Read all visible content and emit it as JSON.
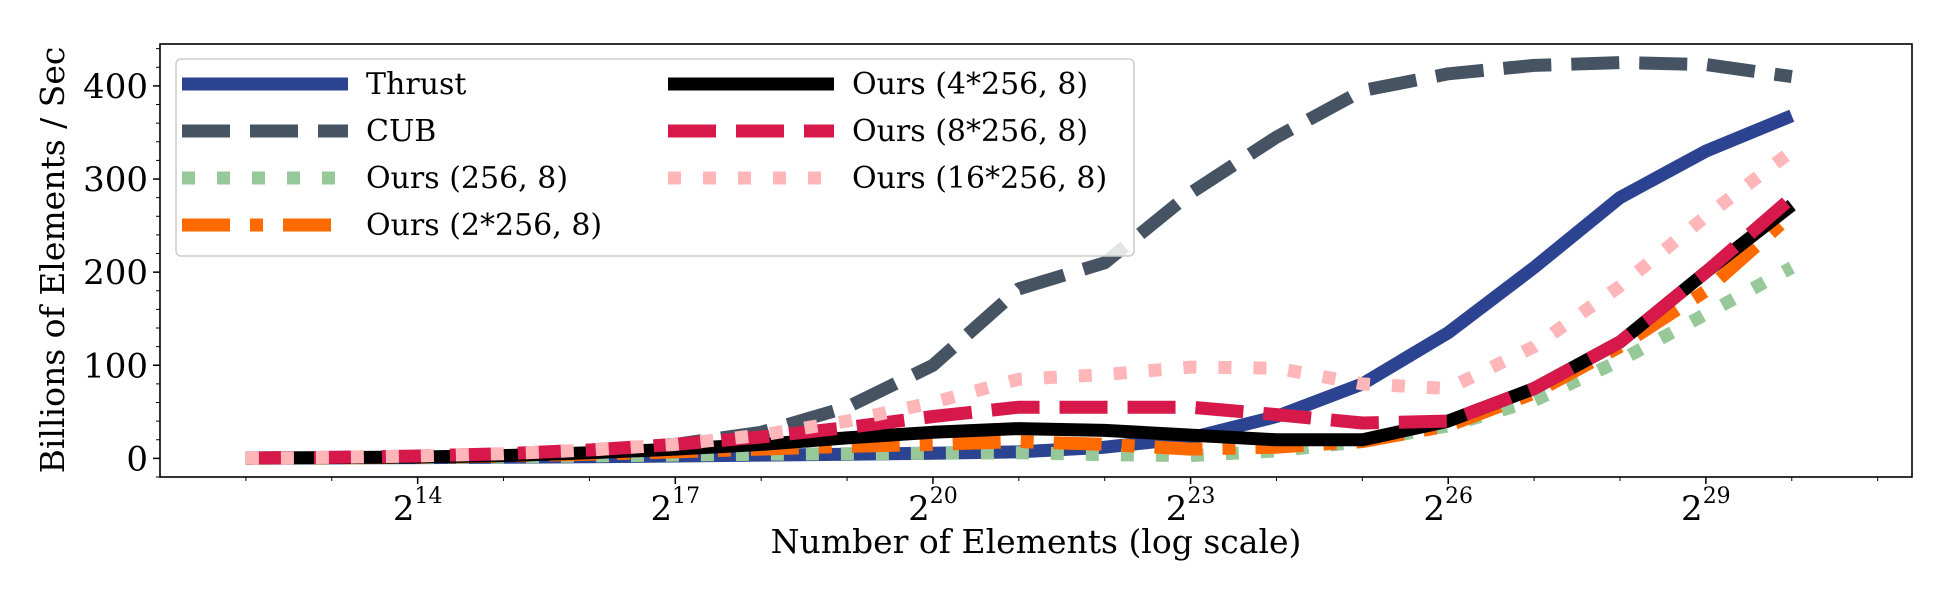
{
  "chart_data": {
    "type": "line",
    "title": "",
    "xlabel": "Number of Elements (log scale)",
    "ylabel": "Billions of Elements / Sec",
    "x_scale": "log2",
    "x_exponents": [
      12,
      13,
      14,
      15,
      16,
      17,
      18,
      19,
      20,
      21,
      22,
      23,
      24,
      25,
      26,
      27,
      28,
      29,
      30
    ],
    "xlim_exponents": [
      11,
      31.4
    ],
    "ylim": [
      -20,
      445
    ],
    "x_ticks": [
      {
        "exponent": 14,
        "base": "2",
        "sup": "14"
      },
      {
        "exponent": 17,
        "base": "2",
        "sup": "17"
      },
      {
        "exponent": 20,
        "base": "2",
        "sup": "20"
      },
      {
        "exponent": 23,
        "base": "2",
        "sup": "23"
      },
      {
        "exponent": 26,
        "base": "2",
        "sup": "26"
      },
      {
        "exponent": 29,
        "base": "2",
        "sup": "29"
      }
    ],
    "y_ticks": [
      {
        "value": 0,
        "label": "0"
      },
      {
        "value": 100,
        "label": "100"
      },
      {
        "value": 200,
        "label": "200"
      },
      {
        "value": 300,
        "label": "300"
      },
      {
        "value": 400,
        "label": "400"
      }
    ],
    "legend_position": "top-left",
    "grid": false,
    "series": [
      {
        "name": "Thrust",
        "color": "#2c4392",
        "dash": "solid",
        "values": [
          0.3,
          0.5,
          0.8,
          1.2,
          1.8,
          2.5,
          3.5,
          4.5,
          5.5,
          7,
          12,
          22,
          45,
          80,
          135,
          205,
          280,
          330,
          368
        ]
      },
      {
        "name": "CUB",
        "color": "#465362",
        "dash": "dashed",
        "values": [
          0.5,
          1,
          2,
          4,
          8,
          15,
          28,
          55,
          100,
          182,
          210,
          285,
          345,
          395,
          413,
          422,
          425,
          423,
          410
        ]
      },
      {
        "name": "Ours (256, 8)",
        "color": "#97c899",
        "dash": "dotted",
        "values": [
          0.2,
          0.4,
          0.8,
          1.5,
          2.5,
          3.5,
          4.5,
          5,
          5.5,
          6,
          4,
          3,
          8,
          18,
          35,
          62,
          105,
          155,
          205
        ]
      },
      {
        "name": "Ours (2*256, 8)",
        "color": "#ff6a00",
        "dash": "dashdot",
        "values": [
          0.3,
          0.6,
          1.2,
          2.5,
          4.5,
          7,
          10,
          13,
          15,
          18,
          15,
          10,
          12,
          18,
          35,
          70,
          120,
          180,
          262
        ]
      },
      {
        "name": "Ours (4*256, 8)",
        "color": "#000000",
        "dash": "solid",
        "values": [
          0.3,
          0.8,
          1.5,
          3,
          6,
          10,
          15,
          22,
          28,
          32,
          30,
          25,
          20,
          20,
          40,
          75,
          125,
          200,
          272
        ]
      },
      {
        "name": "Ours (8*256, 8)",
        "color": "#d6184a",
        "dash": "dashed",
        "values": [
          0.3,
          1,
          2.5,
          5,
          9,
          15,
          23,
          33,
          45,
          55,
          55,
          55,
          47,
          38,
          40,
          75,
          125,
          200,
          280
        ]
      },
      {
        "name": "Ours (16*256, 8)",
        "color": "#ffb6b9",
        "dash": "dotted",
        "values": [
          0.3,
          1,
          2.5,
          5,
          9,
          15,
          25,
          40,
          60,
          85,
          90,
          98,
          97,
          80,
          75,
          120,
          185,
          260,
          330
        ]
      }
    ]
  }
}
